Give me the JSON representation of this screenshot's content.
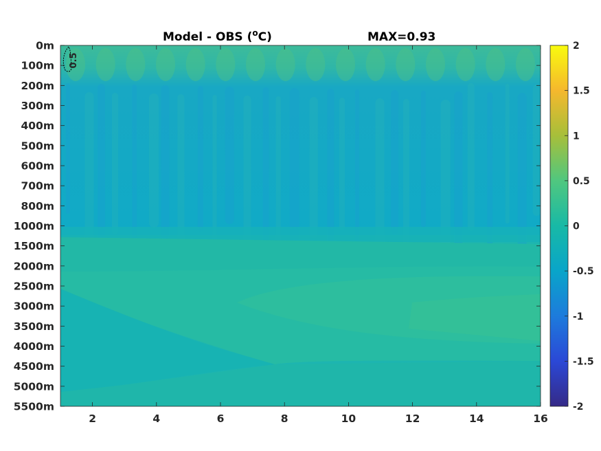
{
  "chart_data": {
    "type": "heatmap",
    "title": "Model - OBS (",
    "title_unit_sup": "o",
    "title_unit_tail": "C)",
    "max_label": "MAX=0.93",
    "contour_label": "0.5",
    "x_ticks": [
      2,
      4,
      6,
      8,
      10,
      12,
      14,
      16
    ],
    "xlim": [
      1,
      16
    ],
    "y_ticks": [
      "0m",
      "100m",
      "200m",
      "300m",
      "400m",
      "500m",
      "600m",
      "700m",
      "800m",
      "1000m",
      "1500m",
      "2000m",
      "2500m",
      "3000m",
      "3500m",
      "4000m",
      "4500m",
      "5000m",
      "5500m"
    ],
    "colorbar": {
      "ticks": [
        2,
        1.5,
        1,
        0.5,
        0,
        -0.5,
        -1,
        -1.5,
        -2
      ],
      "range": [
        -2,
        2
      ],
      "colormap": "parula"
    },
    "field": {
      "max": 0.93,
      "contour_level": 0.5,
      "background_value": 0.05,
      "regions_description": [
        {
          "depth": "0m-100m",
          "value_approx": 0.25
        },
        {
          "depth": "200m-1000m",
          "value_approx": -0.15
        },
        {
          "depth": "1500m-2500m",
          "value_approx": 0.12
        },
        {
          "depth": "2500m-4500m",
          "value_approx": 0.2
        },
        {
          "depth": "4500m-5500m",
          "value_approx": 0.08
        }
      ]
    }
  },
  "colors": {
    "parula": [
      "#352a87",
      "#2b48d6",
      "#1d7bdc",
      "#09a5c9",
      "#18b9a6",
      "#50c77f",
      "#a7bf3a",
      "#f5b82d",
      "#f9fb0e"
    ]
  }
}
